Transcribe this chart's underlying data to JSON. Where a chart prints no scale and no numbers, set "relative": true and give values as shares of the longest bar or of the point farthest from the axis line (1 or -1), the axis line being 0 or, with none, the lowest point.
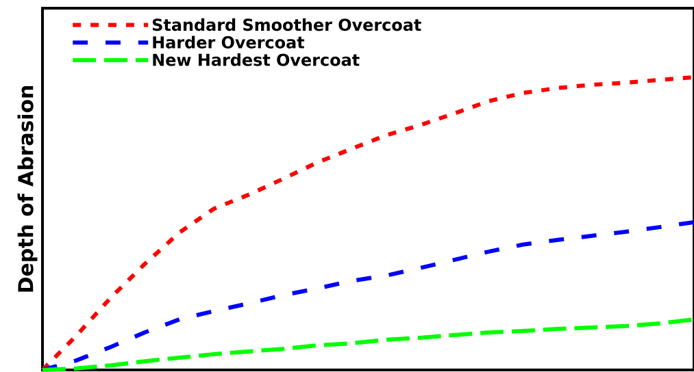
{
  "chart_data": {
    "type": "line",
    "ylabel": "Depth of Abrasion",
    "relative": true,
    "legend": "top left",
    "line_style": "dashed",
    "categories": [
      null,
      null,
      null,
      null,
      null,
      null,
      null,
      null,
      null,
      null,
      null,
      null,
      null,
      null,
      null,
      null,
      null,
      null,
      null,
      null
    ],
    "series": [
      {
        "name": "Standard Smoother Overcoat",
        "color": "#ff0000",
        "values": [
          0,
          0.119,
          0.248,
          0.364,
          0.47,
          0.551,
          0.598,
          0.652,
          0.708,
          0.755,
          0.801,
          0.836,
          0.876,
          0.918,
          0.946,
          0.963,
          0.974,
          0.981,
          0.991,
          1
        ]
      },
      {
        "name": "Harder Overcoat",
        "color": "#0000ff",
        "values": [
          0,
          0.033,
          0.079,
          0.129,
          0.173,
          0.201,
          0.227,
          0.255,
          0.278,
          0.304,
          0.322,
          0.348,
          0.376,
          0.404,
          0.428,
          0.444,
          0.458,
          0.472,
          0.488,
          0.505
        ]
      },
      {
        "name": "New Hardest Overcoat",
        "color": "#00ff00",
        "values": [
          0,
          0.005,
          0.016,
          0.03,
          0.042,
          0.054,
          0.063,
          0.072,
          0.084,
          0.091,
          0.103,
          0.11,
          0.119,
          0.128,
          0.133,
          0.14,
          0.145,
          0.15,
          0.159,
          0.173
        ]
      }
    ]
  }
}
